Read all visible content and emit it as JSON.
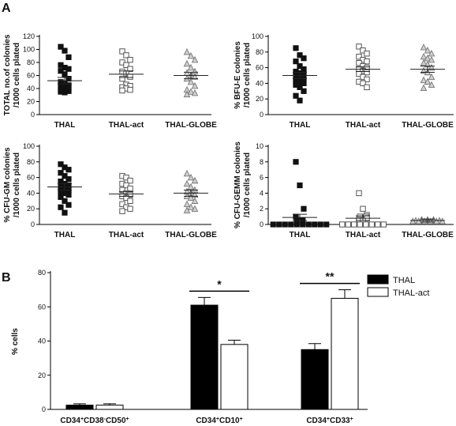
{
  "panels": {
    "a": "A",
    "b": "B"
  },
  "scatter_categories": [
    "THAL",
    "THAL-act",
    "THAL-GLOBE"
  ],
  "chart_data": [
    {
      "type": "scatter",
      "ylabel": [
        "TOTAL no.of colonies",
        "/1000 cells plated"
      ],
      "ylim": [
        0,
        120
      ],
      "yticks": [
        0,
        20,
        40,
        60,
        80,
        100,
        120
      ],
      "categories": [
        "THAL",
        "THAL-act",
        "THAL-GLOBE"
      ],
      "marker": [
        "filled-square",
        "open-square",
        "open-triangle"
      ],
      "series": [
        {
          "name": "THAL",
          "mean": 52,
          "sem": 5,
          "values": [
            104,
            98,
            88,
            76,
            72,
            70,
            67,
            62,
            55,
            50,
            48,
            45,
            44,
            42,
            41,
            38,
            37,
            36,
            35,
            34
          ]
        },
        {
          "name": "THAL-act",
          "mean": 62,
          "sem": 5,
          "values": [
            97,
            91,
            84,
            80,
            76,
            70,
            66,
            63,
            58,
            55,
            46,
            44,
            42,
            40,
            38,
            37
          ]
        },
        {
          "name": "THAL-GLOBE",
          "mean": 60,
          "sem": 5,
          "values": [
            96,
            90,
            84,
            78,
            72,
            66,
            64,
            60,
            58,
            55,
            50,
            44,
            38,
            35,
            33,
            31
          ]
        }
      ]
    },
    {
      "type": "scatter",
      "ylabel": [
        "% BFU-E colonies",
        "/1000 cells plated"
      ],
      "ylim": [
        0,
        100
      ],
      "yticks": [
        0,
        20,
        40,
        60,
        80,
        100
      ],
      "categories": [
        "THAL",
        "THAL-act",
        "THAL-GLOBE"
      ],
      "marker": [
        "filled-square",
        "open-square",
        "open-triangle"
      ],
      "series": [
        {
          "name": "THAL",
          "mean": 50,
          "sem": 4,
          "values": [
            85,
            76,
            72,
            68,
            62,
            58,
            55,
            53,
            52,
            50,
            48,
            47,
            44,
            42,
            40,
            38,
            35,
            30,
            24,
            18
          ]
        },
        {
          "name": "THAL-act",
          "mean": 58,
          "sem": 3,
          "values": [
            87,
            82,
            78,
            74,
            70,
            68,
            66,
            62,
            60,
            58,
            56,
            54,
            52,
            48,
            45,
            42,
            40,
            35
          ]
        },
        {
          "name": "THAL-GLOBE",
          "mean": 58,
          "sem": 4,
          "values": [
            86,
            82,
            78,
            74,
            72,
            70,
            66,
            64,
            60,
            56,
            54,
            48,
            44,
            42,
            38,
            34
          ]
        }
      ]
    },
    {
      "type": "scatter",
      "ylabel": [
        "% CFU-GM colonies",
        "/1000 cells plated"
      ],
      "ylim": [
        0,
        100
      ],
      "yticks": [
        0,
        20,
        40,
        60,
        80,
        100
      ],
      "categories": [
        "THAL",
        "THAL-act",
        "THAL-GLOBE"
      ],
      "marker": [
        "filled-square",
        "open-square",
        "open-triangle"
      ],
      "series": [
        {
          "name": "THAL",
          "mean": 48,
          "sem": 4,
          "values": [
            77,
            73,
            70,
            66,
            62,
            58,
            55,
            52,
            50,
            48,
            46,
            44,
            42,
            40,
            38,
            35,
            30,
            25,
            22,
            15
          ]
        },
        {
          "name": "THAL-act",
          "mean": 39,
          "sem": 3,
          "values": [
            62,
            60,
            56,
            52,
            50,
            46,
            44,
            40,
            38,
            36,
            34,
            30,
            26,
            22,
            20,
            17
          ]
        },
        {
          "name": "THAL-GLOBE",
          "mean": 40,
          "sem": 4,
          "values": [
            65,
            60,
            56,
            52,
            48,
            44,
            42,
            40,
            38,
            36,
            34,
            30,
            26,
            22,
            20,
            18
          ]
        }
      ]
    },
    {
      "type": "scatter",
      "ylabel": [
        "% CFU-GEMM colonies",
        "/1000 cells plated"
      ],
      "ylim": [
        0,
        10
      ],
      "yticks": [
        0,
        2,
        4,
        6,
        8,
        10
      ],
      "categories": [
        "THAL",
        "THAL-act",
        "THAL-GLOBE"
      ],
      "marker": [
        "filled-square",
        "open-square",
        "open-triangle"
      ],
      "series": [
        {
          "name": "THAL",
          "mean": 0.9,
          "sem": 0.4,
          "values": [
            8,
            5,
            2,
            1,
            0.5,
            0.5,
            0,
            0,
            0,
            0,
            0,
            0,
            0,
            0,
            0,
            0
          ]
        },
        {
          "name": "THAL-act",
          "mean": 0.8,
          "sem": 0.3,
          "values": [
            4,
            2,
            1.2,
            1,
            1,
            0.8,
            0.6,
            0.5,
            0,
            0,
            0,
            0,
            0,
            0,
            0,
            0
          ]
        },
        {
          "name": "THAL-GLOBE",
          "mean": 0.5,
          "sem": 0.2,
          "values": [
            0.6,
            0.6,
            0.6,
            0.5,
            0.5,
            0.5,
            0.5,
            0.5,
            0.4,
            0.4,
            0.4,
            0.4,
            0.4,
            0.4
          ]
        }
      ]
    },
    {
      "type": "bar",
      "ylabel": "% cells",
      "ylim": [
        0,
        80
      ],
      "yticks": [
        0,
        20,
        40,
        60,
        80
      ],
      "categories": [
        "CD34+CD38-CD50+",
        "CD34+CD10+",
        "CD34+CD33+"
      ],
      "category_labels": [
        [
          {
            "t": "CD34",
            "s": "norm"
          },
          {
            "t": "+",
            "s": "sup"
          },
          {
            "t": "CD38",
            "s": "norm"
          },
          {
            "t": "-",
            "s": "sup"
          },
          {
            "t": "CD50",
            "s": "norm"
          },
          {
            "t": "+",
            "s": "sup"
          }
        ],
        [
          {
            "t": "CD34",
            "s": "norm"
          },
          {
            "t": "+",
            "s": "sup"
          },
          {
            "t": "CD10",
            "s": "norm"
          },
          {
            "t": "+",
            "s": "sup"
          }
        ],
        [
          {
            "t": "CD34",
            "s": "norm"
          },
          {
            "t": "+",
            "s": "sup"
          },
          {
            "t": "CD33",
            "s": "norm"
          },
          {
            "t": "+",
            "s": "sup"
          }
        ]
      ],
      "legend_position": "top-right",
      "series": [
        {
          "name": "THAL",
          "color": "#000000",
          "values": [
            2.5,
            61,
            35
          ],
          "errors": [
            0.8,
            4.5,
            3.5
          ]
        },
        {
          "name": "THAL-act",
          "color": "#ffffff",
          "values": [
            2.5,
            38,
            65
          ],
          "errors": [
            0.8,
            2.5,
            5
          ]
        }
      ],
      "significance": [
        {
          "category": 1,
          "label": "*"
        },
        {
          "category": 2,
          "label": "**"
        }
      ]
    }
  ]
}
